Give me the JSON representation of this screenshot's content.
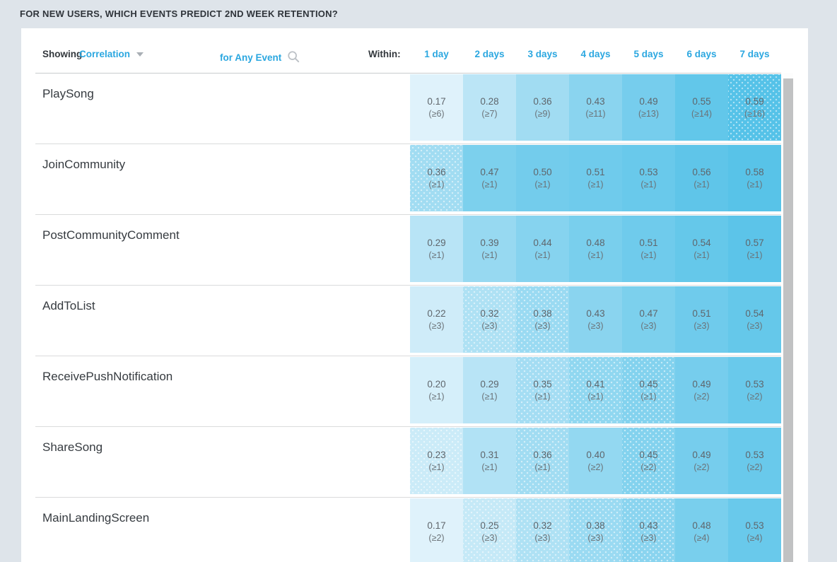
{
  "page": {
    "title": "FOR NEW USERS, WHICH EVENTS PREDICT 2ND WEEK RETENTION?"
  },
  "toolbar": {
    "showing_label": "Showing",
    "metric": "Correlation",
    "caret_icon": "chevron-down",
    "event_scope": "for Any Event",
    "search_icon": "magnifier",
    "within_label": "Within:"
  },
  "columns": [
    "1 day",
    "2 days",
    "3 days",
    "4 days",
    "5 days",
    "6 days",
    "7 days"
  ],
  "rows": [
    {
      "label": "PlaySong",
      "cells": [
        {
          "value": "0.17",
          "threshold": "(≥6)"
        },
        {
          "value": "0.28",
          "threshold": "(≥7)"
        },
        {
          "value": "0.36",
          "threshold": "(≥9)"
        },
        {
          "value": "0.43",
          "threshold": "(≥11)"
        },
        {
          "value": "0.49",
          "threshold": "(≥13)"
        },
        {
          "value": "0.55",
          "threshold": "(≥14)"
        },
        {
          "value": "0.59",
          "threshold": "(≥16)",
          "dotted": true
        }
      ]
    },
    {
      "label": "JoinCommunity",
      "cells": [
        {
          "value": "0.36",
          "threshold": "(≥1)",
          "dotted": true
        },
        {
          "value": "0.47",
          "threshold": "(≥1)"
        },
        {
          "value": "0.50",
          "threshold": "(≥1)"
        },
        {
          "value": "0.51",
          "threshold": "(≥1)"
        },
        {
          "value": "0.53",
          "threshold": "(≥1)"
        },
        {
          "value": "0.56",
          "threshold": "(≥1)"
        },
        {
          "value": "0.58",
          "threshold": "(≥1)"
        }
      ]
    },
    {
      "label": "PostCommunityComment",
      "cells": [
        {
          "value": "0.29",
          "threshold": "(≥1)"
        },
        {
          "value": "0.39",
          "threshold": "(≥1)"
        },
        {
          "value": "0.44",
          "threshold": "(≥1)"
        },
        {
          "value": "0.48",
          "threshold": "(≥1)"
        },
        {
          "value": "0.51",
          "threshold": "(≥1)"
        },
        {
          "value": "0.54",
          "threshold": "(≥1)"
        },
        {
          "value": "0.57",
          "threshold": "(≥1)"
        }
      ]
    },
    {
      "label": "AddToList",
      "cells": [
        {
          "value": "0.22",
          "threshold": "(≥3)"
        },
        {
          "value": "0.32",
          "threshold": "(≥3)",
          "dotted": true
        },
        {
          "value": "0.38",
          "threshold": "(≥3)",
          "dotted": true
        },
        {
          "value": "0.43",
          "threshold": "(≥3)"
        },
        {
          "value": "0.47",
          "threshold": "(≥3)"
        },
        {
          "value": "0.51",
          "threshold": "(≥3)"
        },
        {
          "value": "0.54",
          "threshold": "(≥3)"
        }
      ]
    },
    {
      "label": "ReceivePushNotification",
      "cells": [
        {
          "value": "0.20",
          "threshold": "(≥1)"
        },
        {
          "value": "0.29",
          "threshold": "(≥1)"
        },
        {
          "value": "0.35",
          "threshold": "(≥1)",
          "dotted": true
        },
        {
          "value": "0.41",
          "threshold": "(≥1)",
          "dotted": true
        },
        {
          "value": "0.45",
          "threshold": "(≥1)",
          "dotted": true
        },
        {
          "value": "0.49",
          "threshold": "(≥2)"
        },
        {
          "value": "0.53",
          "threshold": "(≥2)"
        }
      ]
    },
    {
      "label": "ShareSong",
      "cells": [
        {
          "value": "0.23",
          "threshold": "(≥1)",
          "dotted": true
        },
        {
          "value": "0.31",
          "threshold": "(≥1)"
        },
        {
          "value": "0.36",
          "threshold": "(≥1)",
          "dotted": true
        },
        {
          "value": "0.40",
          "threshold": "(≥2)"
        },
        {
          "value": "0.45",
          "threshold": "(≥2)",
          "dotted": true
        },
        {
          "value": "0.49",
          "threshold": "(≥2)"
        },
        {
          "value": "0.53",
          "threshold": "(≥2)"
        }
      ]
    },
    {
      "label": "MainLandingScreen",
      "cells": [
        {
          "value": "0.17",
          "threshold": "(≥2)"
        },
        {
          "value": "0.25",
          "threshold": "(≥3)",
          "dotted": true
        },
        {
          "value": "0.32",
          "threshold": "(≥3)",
          "dotted": true
        },
        {
          "value": "0.38",
          "threshold": "(≥3)",
          "dotted": true
        },
        {
          "value": "0.43",
          "threshold": "(≥3)",
          "dotted": true
        },
        {
          "value": "0.48",
          "threshold": "(≥4)"
        },
        {
          "value": "0.53",
          "threshold": "(≥4)"
        }
      ]
    }
  ],
  "colors": {
    "page_bg": "#DEE4EA",
    "card_bg": "#FFFFFF",
    "accent_blue": "#2BA7E0",
    "title_text": "#2F343A",
    "label_text": "#363B40",
    "cell_value_text": "#5F666C",
    "cell_threshold_text": "#6B7277",
    "separator": "#DADBDC",
    "scrollbar_thumb": "#C1C2C3",
    "scale": {
      "min_value": 0.17,
      "max_value": 0.59,
      "min_color": "#DFF2FB",
      "max_color": "#55C2E8"
    }
  },
  "chart_data": {
    "type": "heatmap",
    "title": "FOR NEW USERS, WHICH EVENTS PREDICT 2ND WEEK RETENTION?",
    "metric": "Correlation",
    "columns": [
      "1 day",
      "2 days",
      "3 days",
      "4 days",
      "5 days",
      "6 days",
      "7 days"
    ],
    "rows": [
      "PlaySong",
      "JoinCommunity",
      "PostCommunityComment",
      "AddToList",
      "ReceivePushNotification",
      "ShareSong",
      "MainLandingScreen"
    ],
    "values": [
      [
        0.17,
        0.28,
        0.36,
        0.43,
        0.49,
        0.55,
        0.59
      ],
      [
        0.36,
        0.47,
        0.5,
        0.51,
        0.53,
        0.56,
        0.58
      ],
      [
        0.29,
        0.39,
        0.44,
        0.48,
        0.51,
        0.54,
        0.57
      ],
      [
        0.22,
        0.32,
        0.38,
        0.43,
        0.47,
        0.51,
        0.54
      ],
      [
        0.2,
        0.29,
        0.35,
        0.41,
        0.45,
        0.49,
        0.53
      ],
      [
        0.23,
        0.31,
        0.36,
        0.4,
        0.45,
        0.49,
        0.53
      ],
      [
        0.17,
        0.25,
        0.32,
        0.38,
        0.43,
        0.48,
        0.53
      ]
    ],
    "event_count_thresholds": [
      [
        6,
        7,
        9,
        11,
        13,
        14,
        16
      ],
      [
        1,
        1,
        1,
        1,
        1,
        1,
        1
      ],
      [
        1,
        1,
        1,
        1,
        1,
        1,
        1
      ],
      [
        3,
        3,
        3,
        3,
        3,
        3,
        3
      ],
      [
        1,
        1,
        1,
        1,
        1,
        2,
        2
      ],
      [
        1,
        1,
        1,
        2,
        2,
        2,
        2
      ],
      [
        2,
        3,
        3,
        3,
        3,
        4,
        4
      ]
    ],
    "color_range": {
      "min": 0.17,
      "max": 0.59
    }
  }
}
